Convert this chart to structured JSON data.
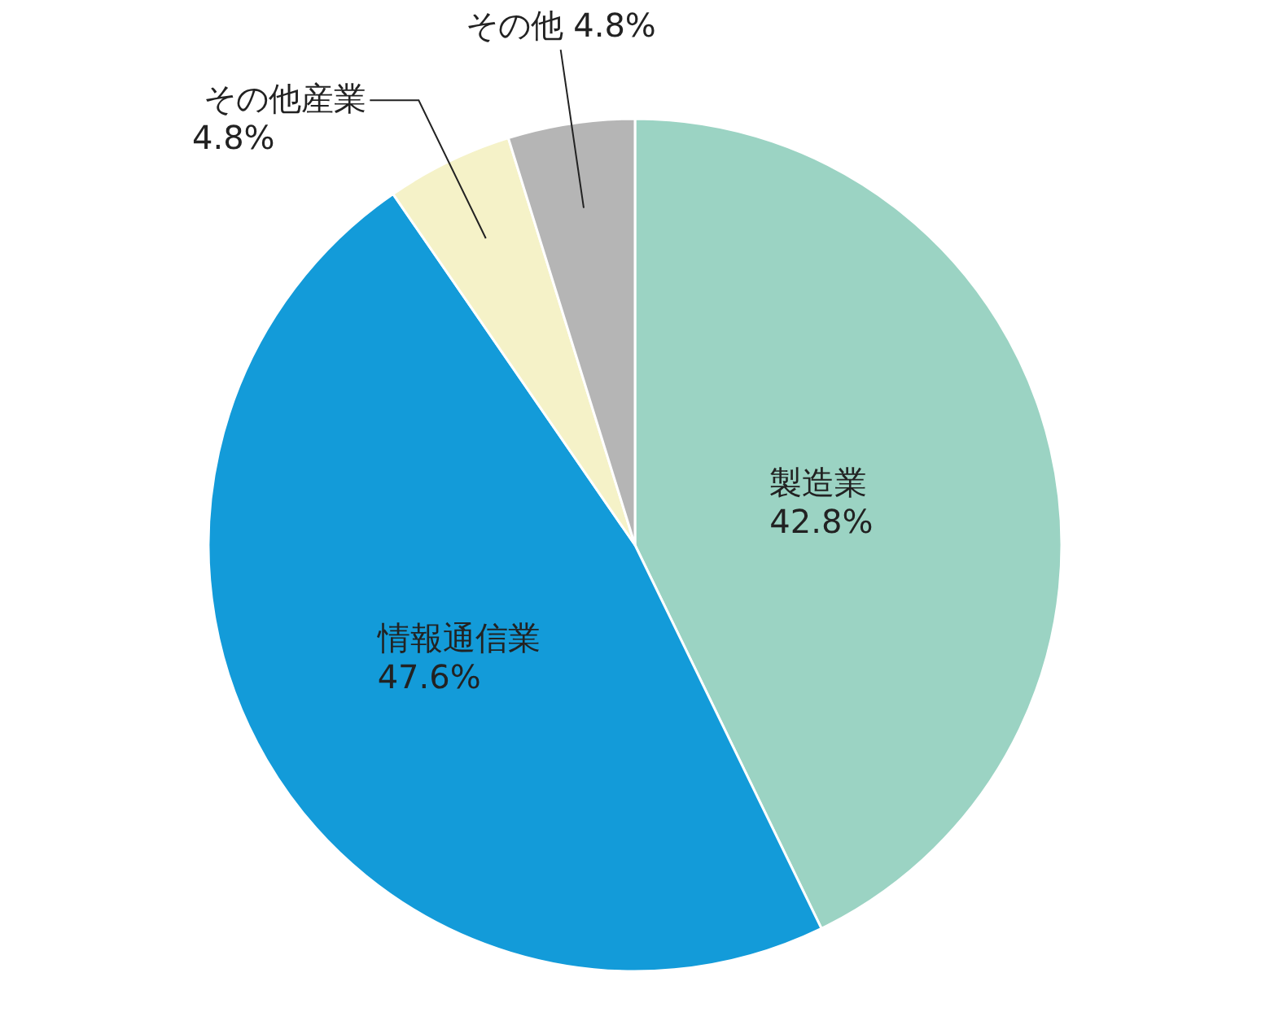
{
  "chart_data": {
    "type": "pie",
    "categories": [
      "製造業",
      "情報通信業",
      "その他産業",
      "その他"
    ],
    "values": [
      42.8,
      47.6,
      4.8,
      4.8
    ],
    "value_labels": [
      "42.8%",
      "47.6%",
      "4.8%",
      "4.8%"
    ],
    "colors": [
      "#9bd3c3",
      "#139bd9",
      "#f5f2c8",
      "#b5b5b5"
    ]
  }
}
